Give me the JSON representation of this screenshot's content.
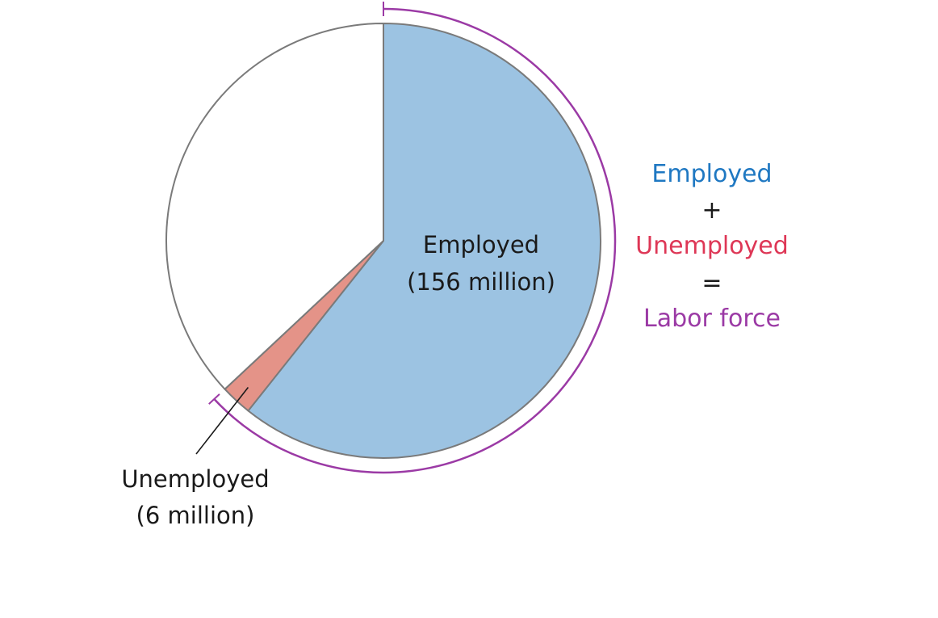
{
  "chart_data": {
    "type": "pie",
    "slices": [
      {
        "key": "employed",
        "label": "Employed",
        "value_text": "(156 million)",
        "value": 156,
        "color": "#9cc3e2"
      },
      {
        "key": "unemployed",
        "label": "Unemployed",
        "value_text": "(6 million)",
        "value": 6,
        "color": "#e49388"
      },
      {
        "key": "other",
        "label": "",
        "value_text": "",
        "value": 95,
        "color": "#ffffff"
      }
    ],
    "start_angle_deg": 0,
    "bracket": {
      "label": "Labor force",
      "color": "#9b3aa5"
    },
    "equation": {
      "line1": "Employed",
      "op1": "+",
      "line2": "Unemployed",
      "op2": "=",
      "line3": "Labor force",
      "colors": {
        "employed": "#1f78c2",
        "unemployed": "#de3756",
        "labor_force": "#9b3aa5",
        "operator": "#1a1a1a"
      }
    },
    "outline_color": "#7a7a7a"
  }
}
